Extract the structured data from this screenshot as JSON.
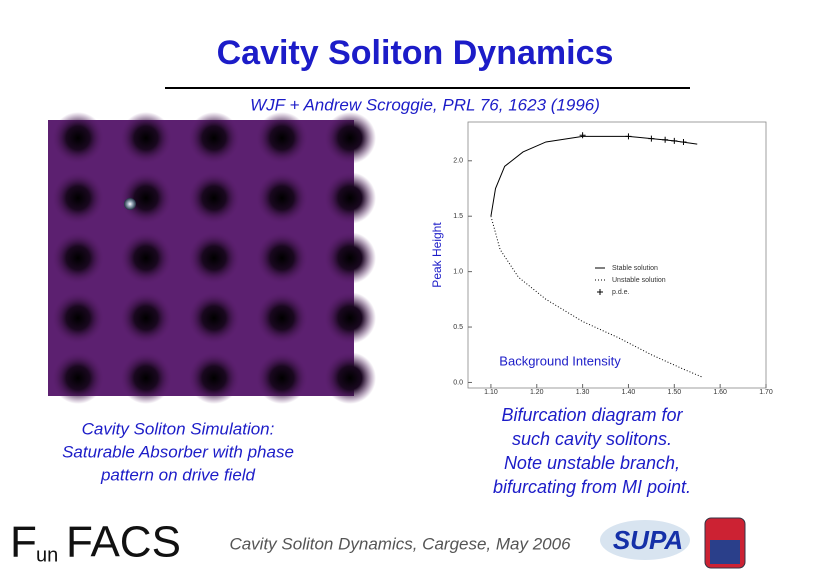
{
  "title": "Cavity Soliton Dynamics",
  "citation": "WJF + Andrew Scroggie, PRL 76, 1623 (1996)",
  "left_caption": [
    "Cavity Soliton Simulation:",
    "Saturable Absorber with phase",
    "pattern on drive field"
  ],
  "right_caption": [
    "Bifurcation diagram for",
    "such cavity solitons.",
    "Note unstable branch,",
    "bifurcating from MI point."
  ],
  "footer": "Cavity Soliton Dynamics, Cargese, May 2006",
  "logo_parts": [
    "F",
    "un",
    "FACS"
  ],
  "partner_logo": "SUPA",
  "chart_data": {
    "type": "line",
    "x_label": "Background Intensity",
    "y_label": "Peak Height",
    "xlim": [
      1.05,
      1.7
    ],
    "ylim": [
      -0.05,
      2.35
    ],
    "xticks": [
      {
        "value": 1.1,
        "label": "1.10"
      },
      {
        "value": 1.2,
        "label": "1.20"
      },
      {
        "value": 1.3,
        "label": "1.30"
      },
      {
        "value": 1.4,
        "label": "1.40"
      },
      {
        "value": 1.5,
        "label": "1.50"
      },
      {
        "value": 1.6,
        "label": "1.60"
      },
      {
        "value": 1.7,
        "label": "1.70"
      }
    ],
    "yticks": [
      {
        "value": 0,
        "label": "0.0"
      },
      0.5,
      {
        "value": 1,
        "label": "1.0"
      },
      1.5,
      {
        "value": 2,
        "label": "2.0"
      }
    ],
    "series": [
      {
        "name": "Stable solution",
        "color": "#000000",
        "style": "solid",
        "x": [
          1.1,
          1.11,
          1.13,
          1.17,
          1.22,
          1.3,
          1.4,
          1.5,
          1.55
        ],
        "values": [
          1.5,
          1.75,
          1.95,
          2.08,
          2.17,
          2.22,
          2.22,
          2.18,
          2.15
        ]
      },
      {
        "name": "Unstable solution",
        "color": "#000000",
        "style": "dotted",
        "x": [
          1.1,
          1.12,
          1.16,
          1.22,
          1.3,
          1.38,
          1.45,
          1.52,
          1.56
        ],
        "values": [
          1.5,
          1.2,
          0.95,
          0.75,
          0.55,
          0.4,
          0.25,
          0.12,
          0.05
        ]
      },
      {
        "name": "p.d.e.",
        "color": "#000000",
        "style": "plus",
        "x": [
          1.3,
          1.4,
          1.45,
          1.48,
          1.5,
          1.52
        ],
        "values": [
          2.23,
          2.22,
          2.2,
          2.19,
          2.18,
          2.17
        ]
      }
    ]
  }
}
